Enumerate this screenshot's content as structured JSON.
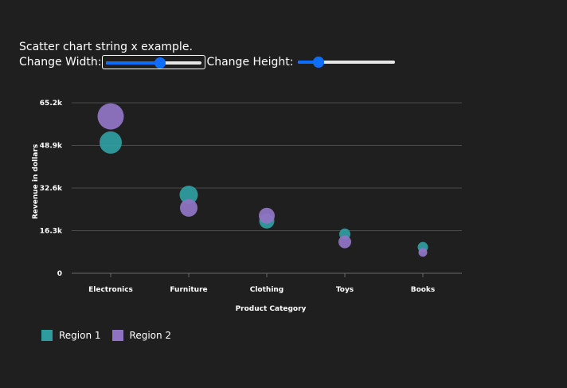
{
  "header": {
    "title": "Scatter chart string x example."
  },
  "controls": {
    "width_label": "Change Width:",
    "height_label": "Change Height:",
    "width_value": 0.55,
    "height_value": 0.22
  },
  "chart_data": {
    "type": "scatter",
    "categories": [
      "Electronics",
      "Furniture",
      "Clothing",
      "Toys",
      "Books"
    ],
    "xlabel": "Product Category",
    "ylabel": "Revenue in dollars",
    "ylim": [
      0,
      65200
    ],
    "yticks": [
      0,
      16300,
      32600,
      48900,
      65200
    ],
    "ytick_labels": [
      "0",
      "16.3k",
      "32.6k",
      "48.9k",
      "65.2k"
    ],
    "grid": true,
    "legend_position": "bottom-left",
    "series": [
      {
        "name": "Region 1",
        "color": "#2e9c9e",
        "values": [
          50000,
          30000,
          20000,
          15000,
          10000
        ],
        "sizes": [
          28,
          23,
          19,
          14,
          13
        ]
      },
      {
        "name": "Region 2",
        "color": "#8f73c2",
        "values": [
          60000,
          25000,
          22000,
          12000,
          8000
        ],
        "sizes": [
          33,
          22,
          20,
          16,
          11
        ]
      }
    ]
  }
}
